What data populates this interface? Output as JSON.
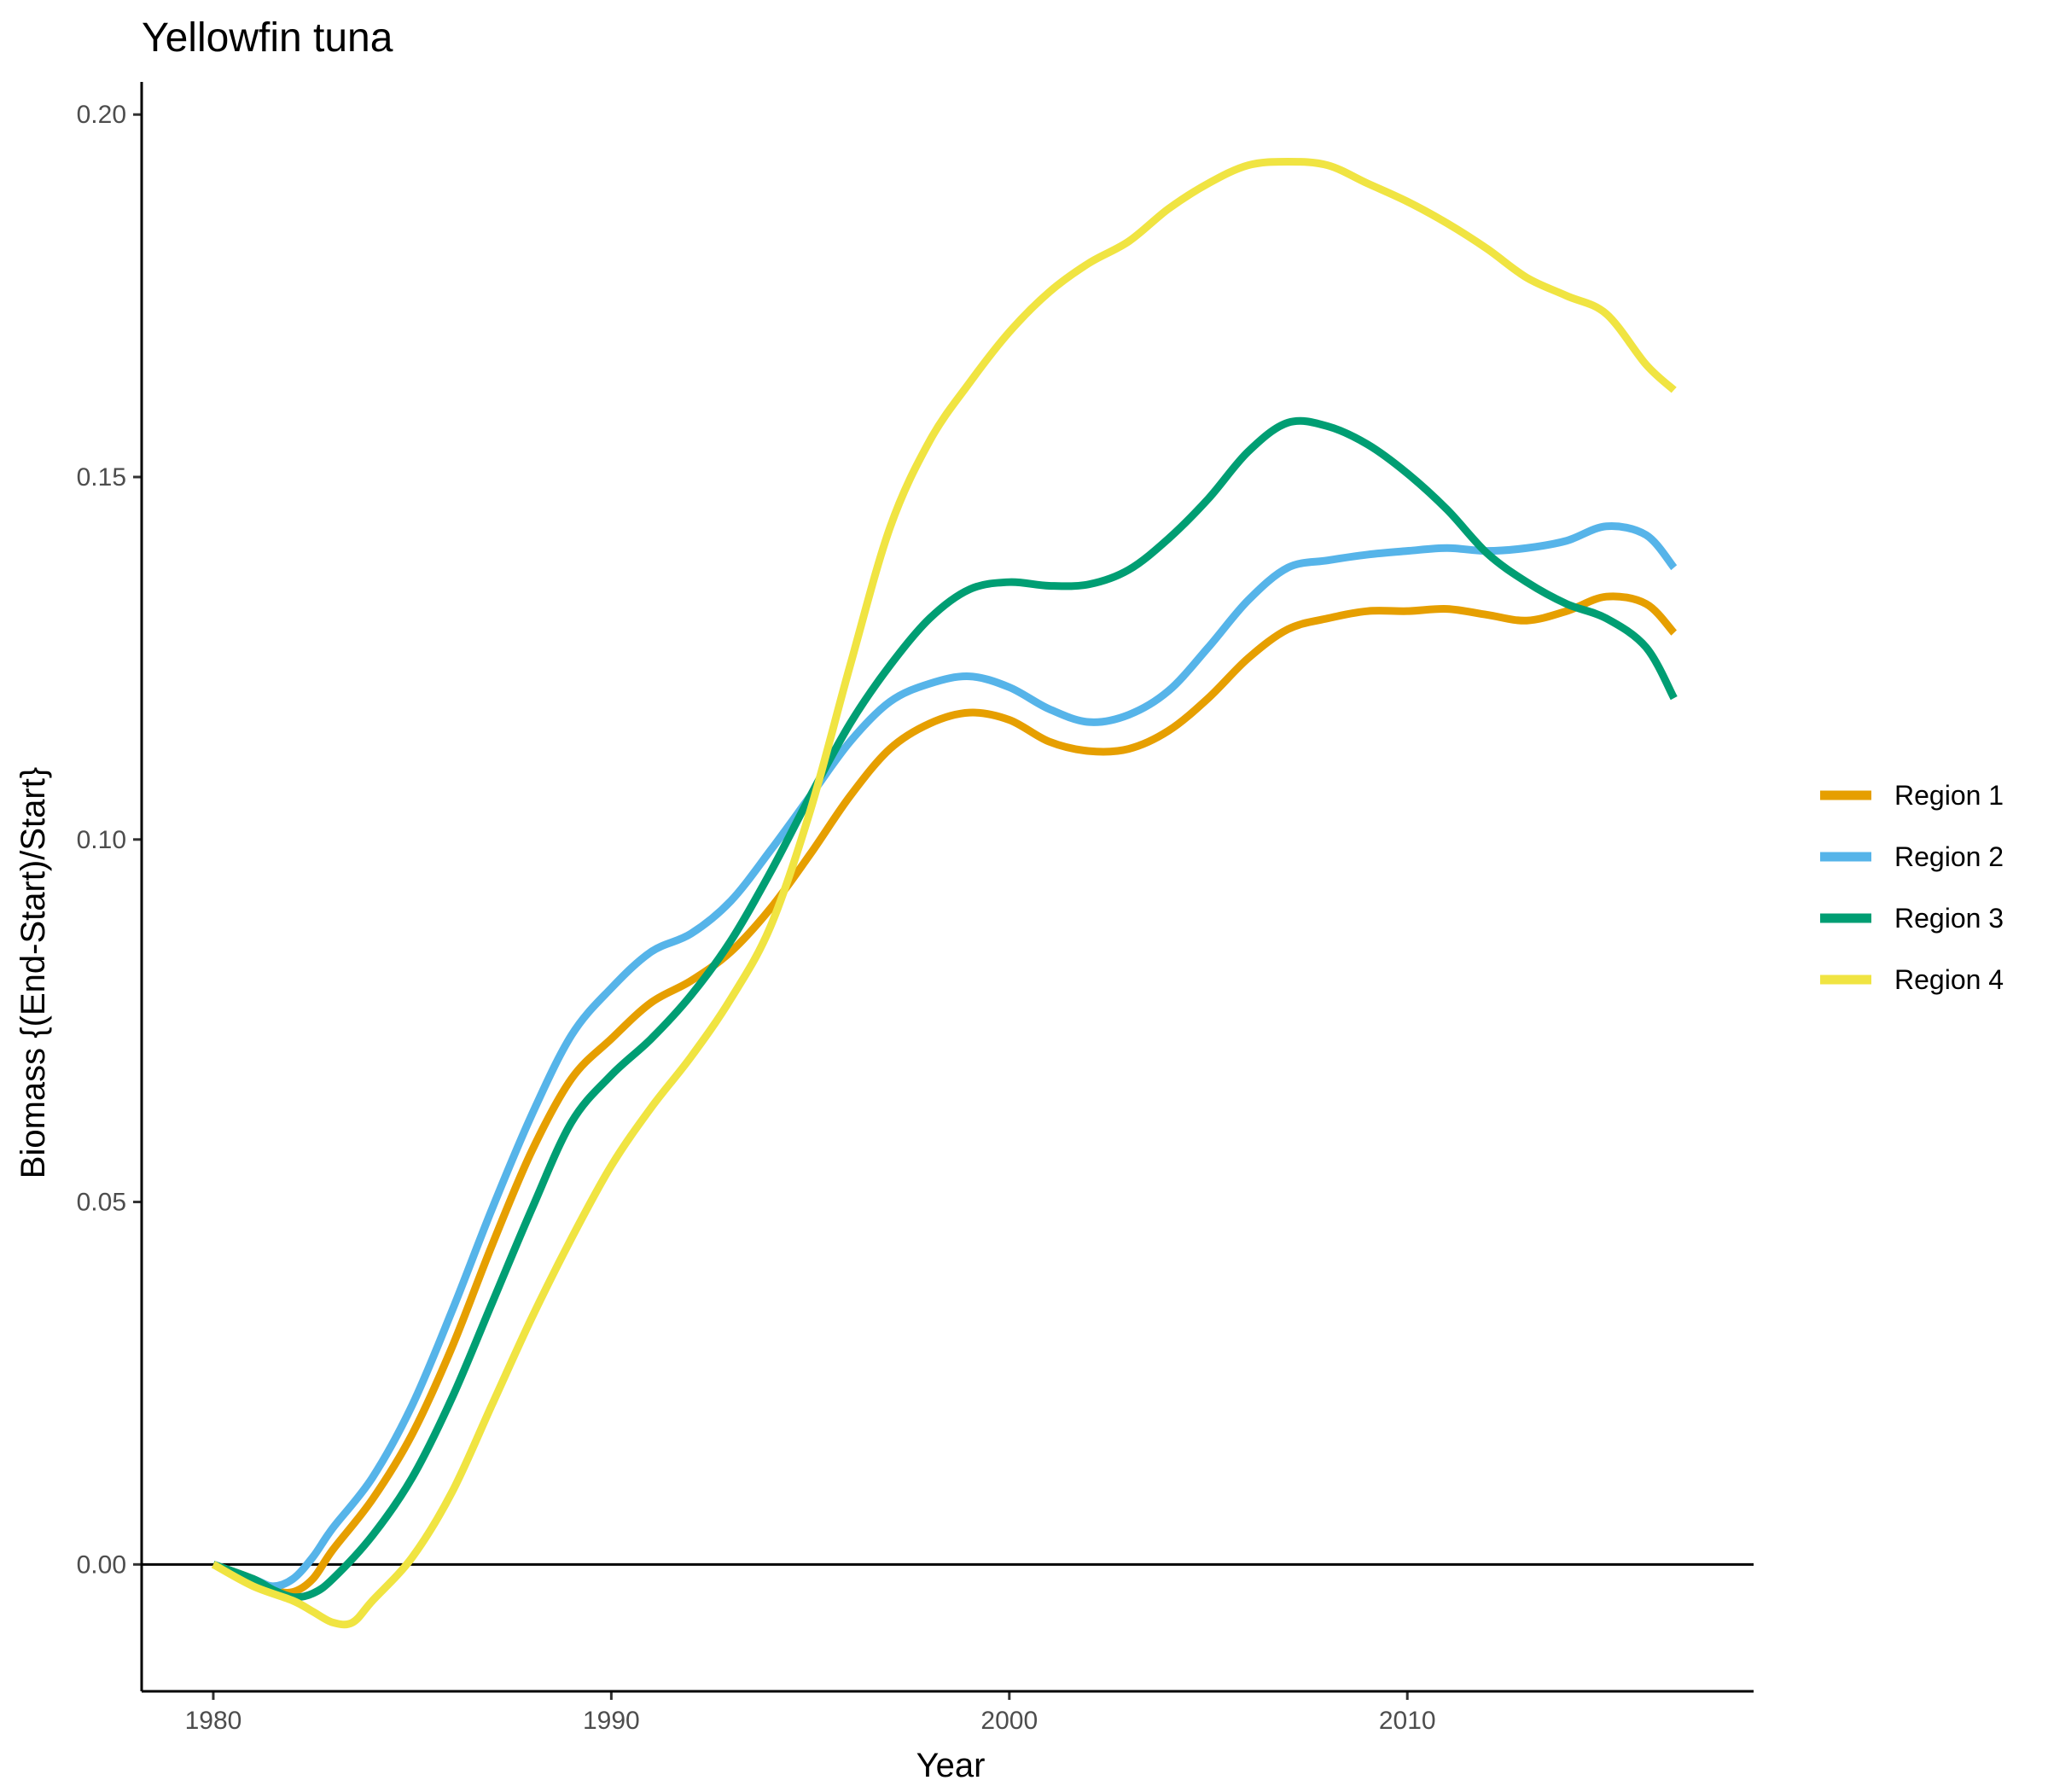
{
  "chart_data": {
    "type": "line",
    "title": "Yellowfin tuna",
    "xlabel": "Year",
    "ylabel": "Biomass {(End-Start)/Start}",
    "xlim": [
      1978.2,
      2018.7
    ],
    "ylim": [
      -0.0175,
      0.2045
    ],
    "x_ticks": [
      1980,
      1990,
      2000,
      2010
    ],
    "x_tick_labels": [
      "1980",
      "1990",
      "2000",
      "2010"
    ],
    "y_ticks": [
      0,
      0.05,
      0.1,
      0.15,
      0.2
    ],
    "y_tick_labels": [
      "0.00",
      "0.05",
      "0.10",
      "0.15",
      "0.20"
    ],
    "reference_line_y": 0,
    "grid": false,
    "legend_position": "right",
    "series": [
      {
        "name": "Region 1",
        "color": "#E69F00",
        "points": [
          [
            1980,
            0
          ],
          [
            1981,
            -0.002
          ],
          [
            1981.5,
            -0.0035
          ],
          [
            1982,
            -0.0038
          ],
          [
            1982.5,
            -0.002
          ],
          [
            1983,
            0.002
          ],
          [
            1984,
            0.009
          ],
          [
            1985,
            0.018
          ],
          [
            1986,
            0.03
          ],
          [
            1987,
            0.044
          ],
          [
            1988,
            0.057
          ],
          [
            1989,
            0.067
          ],
          [
            1990,
            0.0725
          ],
          [
            1991,
            0.0775
          ],
          [
            1992,
            0.0805
          ],
          [
            1993,
            0.0845
          ],
          [
            1994,
            0.0905
          ],
          [
            1995,
            0.098
          ],
          [
            1996,
            0.106
          ],
          [
            1997,
            0.1125
          ],
          [
            1998,
            0.116
          ],
          [
            1999,
            0.1175
          ],
          [
            2000,
            0.1165
          ],
          [
            2001,
            0.1135
          ],
          [
            2002,
            0.1122
          ],
          [
            2003,
            0.1125
          ],
          [
            2004,
            0.115
          ],
          [
            2005,
            0.1195
          ],
          [
            2006,
            0.125
          ],
          [
            2007,
            0.129
          ],
          [
            2008,
            0.1305
          ],
          [
            2009,
            0.1315
          ],
          [
            2010,
            0.1315
          ],
          [
            2011,
            0.1318
          ],
          [
            2012,
            0.131
          ],
          [
            2013,
            0.1302
          ],
          [
            2014,
            0.1315
          ],
          [
            2015,
            0.1335
          ],
          [
            2016,
            0.1325
          ],
          [
            2016.7,
            0.1285
          ]
        ]
      },
      {
        "name": "Region 2",
        "color": "#56B4E9",
        "points": [
          [
            1980,
            0
          ],
          [
            1981,
            -0.002
          ],
          [
            1981.5,
            -0.003
          ],
          [
            1982,
            -0.002
          ],
          [
            1982.5,
            0.001
          ],
          [
            1983,
            0.005
          ],
          [
            1984,
            0.012
          ],
          [
            1985,
            0.022
          ],
          [
            1986,
            0.035
          ],
          [
            1987,
            0.049
          ],
          [
            1988,
            0.062
          ],
          [
            1989,
            0.073
          ],
          [
            1990,
            0.0795
          ],
          [
            1991,
            0.0845
          ],
          [
            1992,
            0.087
          ],
          [
            1993,
            0.0915
          ],
          [
            1994,
            0.0985
          ],
          [
            1995,
            0.106
          ],
          [
            1996,
            0.1135
          ],
          [
            1997,
            0.119
          ],
          [
            1998,
            0.1215
          ],
          [
            1999,
            0.1225
          ],
          [
            2000,
            0.121
          ],
          [
            2001,
            0.118
          ],
          [
            2002,
            0.1162
          ],
          [
            2003,
            0.1172
          ],
          [
            2004,
            0.1205
          ],
          [
            2005,
            0.1265
          ],
          [
            2006,
            0.133
          ],
          [
            2007,
            0.1375
          ],
          [
            2008,
            0.1385
          ],
          [
            2009,
            0.1393
          ],
          [
            2010,
            0.1398
          ],
          [
            2011,
            0.1402
          ],
          [
            2012,
            0.1398
          ],
          [
            2013,
            0.1402
          ],
          [
            2014,
            0.1412
          ],
          [
            2015,
            0.1432
          ],
          [
            2016,
            0.142
          ],
          [
            2016.7,
            0.1375
          ]
        ]
      },
      {
        "name": "Region 3",
        "color": "#009E73",
        "points": [
          [
            1980,
            0
          ],
          [
            1981,
            -0.002
          ],
          [
            1981.5,
            -0.0035
          ],
          [
            1982,
            -0.0045
          ],
          [
            1982.5,
            -0.004
          ],
          [
            1983,
            -0.002
          ],
          [
            1984,
            0.004
          ],
          [
            1985,
            0.012
          ],
          [
            1986,
            0.023
          ],
          [
            1987,
            0.036
          ],
          [
            1988,
            0.049
          ],
          [
            1989,
            0.061
          ],
          [
            1990,
            0.0675
          ],
          [
            1991,
            0.0725
          ],
          [
            1992,
            0.0785
          ],
          [
            1993,
            0.086
          ],
          [
            1994,
            0.0955
          ],
          [
            1995,
            0.106
          ],
          [
            1996,
            0.116
          ],
          [
            1997,
            0.124
          ],
          [
            1998,
            0.1305
          ],
          [
            1999,
            0.1345
          ],
          [
            2000,
            0.1355
          ],
          [
            2001,
            0.135
          ],
          [
            2002,
            0.1352
          ],
          [
            2003,
            0.1372
          ],
          [
            2004,
            0.1415
          ],
          [
            2005,
            0.147
          ],
          [
            2006,
            0.1535
          ],
          [
            2007,
            0.1575
          ],
          [
            2008,
            0.157
          ],
          [
            2009,
            0.1545
          ],
          [
            2010,
            0.1505
          ],
          [
            2011,
            0.1455
          ],
          [
            2012,
            0.1395
          ],
          [
            2013,
            0.1355
          ],
          [
            2014,
            0.1325
          ],
          [
            2015,
            0.1305
          ],
          [
            2016,
            0.1265
          ],
          [
            2016.7,
            0.1195
          ]
        ]
      },
      {
        "name": "Region 4",
        "color": "#F0E442",
        "points": [
          [
            1980,
            0
          ],
          [
            1981,
            -0.003
          ],
          [
            1982,
            -0.005
          ],
          [
            1982.5,
            -0.0065
          ],
          [
            1983,
            -0.008
          ],
          [
            1983.5,
            -0.008
          ],
          [
            1984,
            -0.005
          ],
          [
            1985,
            0.001
          ],
          [
            1986,
            0.01
          ],
          [
            1987,
            0.022
          ],
          [
            1988,
            0.034
          ],
          [
            1989,
            0.045
          ],
          [
            1990,
            0.055
          ],
          [
            1991,
            0.063
          ],
          [
            1992,
            0.07
          ],
          [
            1993,
            0.078
          ],
          [
            1994,
            0.088
          ],
          [
            1995,
            0.104
          ],
          [
            1996,
            0.124
          ],
          [
            1997,
            0.143
          ],
          [
            1998,
            0.155
          ],
          [
            1999,
            0.163
          ],
          [
            2000,
            0.17
          ],
          [
            2001,
            0.1755
          ],
          [
            2002,
            0.1795
          ],
          [
            2003,
            0.1825
          ],
          [
            2004,
            0.187
          ],
          [
            2005,
            0.1905
          ],
          [
            2006,
            0.193
          ],
          [
            2007,
            0.1935
          ],
          [
            2008,
            0.193
          ],
          [
            2009,
            0.1905
          ],
          [
            2010,
            0.188
          ],
          [
            2011,
            0.185
          ],
          [
            2012,
            0.1815
          ],
          [
            2013,
            0.1775
          ],
          [
            2014,
            0.175
          ],
          [
            2015,
            0.1725
          ],
          [
            2016,
            0.1655
          ],
          [
            2016.7,
            0.162
          ]
        ]
      }
    ]
  }
}
